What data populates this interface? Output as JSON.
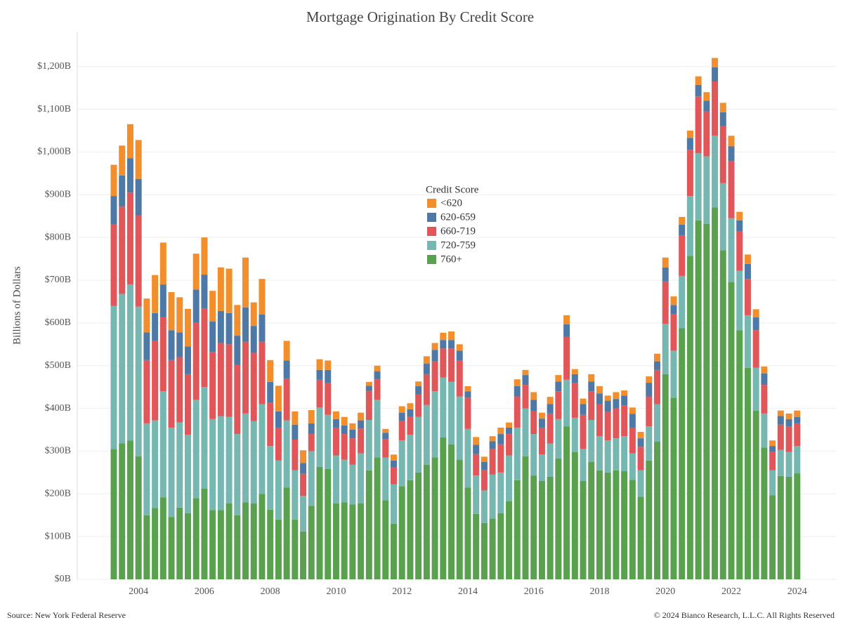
{
  "chart_data": {
    "type": "stacked_bar",
    "title": "Mortgage Origination By Credit Score",
    "y_label": "Billions of Dollars",
    "source": "Source: New York Federal Reserve",
    "copyright": "© 2024 Bianco Research, L.L.C. All Rights Reserved",
    "legend_title": "Credit Score",
    "categories": [
      null,
      null,
      null,
      "2004",
      null,
      null,
      null,
      null,
      null,
      null,
      null,
      "2006",
      null,
      null,
      null,
      null,
      null,
      null,
      null,
      "2008",
      null,
      null,
      null,
      null,
      null,
      null,
      null,
      "2010",
      null,
      null,
      null,
      null,
      null,
      null,
      null,
      "2012",
      null,
      null,
      null,
      null,
      null,
      null,
      null,
      "2014",
      null,
      null,
      null,
      null,
      null,
      null,
      null,
      "2016",
      null,
      null,
      null,
      null,
      null,
      null,
      null,
      "2018",
      null,
      null,
      null,
      null,
      null,
      null,
      null,
      "2020",
      null,
      null,
      null,
      null,
      null,
      null,
      null,
      "2022",
      null,
      null,
      null,
      null,
      null,
      null,
      null,
      "2024"
    ],
    "series": [
      {
        "name": "760+",
        "color": "#59a14f",
        "values": [
          305,
          318,
          325,
          288,
          150,
          167,
          192,
          146,
          168,
          155,
          190,
          212,
          162,
          162,
          178,
          150,
          180,
          178,
          200,
          163,
          140,
          215,
          140,
          112,
          172,
          263,
          258,
          178,
          180,
          175,
          178,
          255,
          285,
          185,
          130,
          218,
          232,
          250,
          268,
          285,
          332,
          316,
          280,
          215,
          153,
          132,
          142,
          155,
          183,
          232,
          288,
          243,
          230,
          240,
          283,
          358,
          298,
          230,
          275,
          255,
          250,
          255,
          253,
          233,
          193,
          278,
          322,
          480,
          425,
          588,
          757,
          840,
          832,
          870,
          770,
          695,
          583,
          495,
          395,
          308,
          197,
          242,
          240,
          248
        ]
      },
      {
        "name": "720-759",
        "color": "#76b7b2",
        "values": [
          335,
          350,
          365,
          350,
          215,
          205,
          248,
          209,
          199,
          183,
          230,
          238,
          213,
          220,
          202,
          190,
          208,
          192,
          210,
          149,
          138,
          157,
          115,
          83,
          128,
          139,
          127,
          112,
          100,
          93,
          117,
          118,
          135,
          100,
          92,
          107,
          106,
          130,
          140,
          155,
          140,
          146,
          148,
          137,
          90,
          76,
          103,
          95,
          107,
          123,
          112,
          97,
          62,
          78,
          92,
          109,
          80,
          75,
          98,
          80,
          75,
          75,
          82,
          62,
          62,
          80,
          88,
          118,
          110,
          122,
          140,
          157,
          158,
          168,
          157,
          150,
          139,
          123,
          100,
          80,
          58,
          61,
          58,
          64
        ]
      },
      {
        "name": "660-719",
        "color": "#e15759",
        "values": [
          190,
          204,
          215,
          214,
          148,
          186,
          173,
          158,
          153,
          142,
          180,
          183,
          157,
          171,
          170,
          162,
          168,
          160,
          146,
          101,
          77,
          98,
          72,
          52,
          40,
          65,
          75,
          65,
          60,
          62,
          58,
          68,
          48,
          43,
          40,
          45,
          42,
          53,
          72,
          70,
          68,
          78,
          84,
          73,
          50,
          47,
          60,
          66,
          50,
          73,
          55,
          53,
          63,
          70,
          65,
          100,
          82,
          80,
          67,
          75,
          67,
          70,
          72,
          60,
          55,
          70,
          80,
          99,
          85,
          95,
          108,
          133,
          105,
          127,
          133,
          133,
          93,
          85,
          88,
          67,
          43,
          59,
          60,
          53
        ]
      },
      {
        "name": "620-659",
        "color": "#4e79a7",
        "values": [
          67,
          73,
          80,
          85,
          65,
          65,
          77,
          70,
          58,
          65,
          78,
          80,
          71,
          75,
          73,
          68,
          80,
          63,
          64,
          49,
          38,
          42,
          35,
          25,
          25,
          23,
          30,
          20,
          20,
          20,
          19,
          12,
          19,
          15,
          16,
          20,
          18,
          19,
          25,
          27,
          20,
          20,
          23,
          15,
          22,
          20,
          18,
          24,
          15,
          24,
          23,
          27,
          21,
          22,
          23,
          30,
          20,
          25,
          23,
          25,
          26,
          22,
          23,
          32,
          20,
          32,
          20,
          33,
          22,
          25,
          28,
          27,
          25,
          33,
          33,
          35,
          25,
          35,
          30,
          27,
          14,
          20,
          17,
          15
        ]
      },
      {
        "name": "<620",
        "color": "#f28e2b",
        "values": [
          73,
          70,
          80,
          91,
          79,
          89,
          98,
          89,
          82,
          88,
          84,
          87,
          72,
          102,
          104,
          72,
          117,
          55,
          83,
          51,
          60,
          46,
          31,
          30,
          31,
          25,
          22,
          18,
          20,
          15,
          18,
          9,
          13,
          9,
          14,
          15,
          14,
          11,
          17,
          16,
          17,
          20,
          15,
          12,
          18,
          12,
          12,
          15,
          12,
          16,
          12,
          18,
          14,
          17,
          15,
          21,
          12,
          13,
          17,
          17,
          12,
          16,
          12,
          15,
          15,
          15,
          18,
          23,
          20,
          18,
          17,
          20,
          20,
          22,
          22,
          25,
          20,
          22,
          19,
          16,
          13,
          13,
          13,
          15
        ]
      }
    ],
    "ylim": [
      0,
      1280
    ],
    "yticks": [
      {
        "value": 0,
        "label": "$0B"
      },
      {
        "value": 100,
        "label": "$100B"
      },
      {
        "value": 200,
        "label": "$200B"
      },
      {
        "value": 300,
        "label": "$300B"
      },
      {
        "value": 400,
        "label": "$400B"
      },
      {
        "value": 500,
        "label": "$500B"
      },
      {
        "value": 600,
        "label": "$600B"
      },
      {
        "value": 700,
        "label": "$700B"
      },
      {
        "value": 800,
        "label": "$800B"
      },
      {
        "value": 900,
        "label": "$900B"
      },
      {
        "value": 1000,
        "label": "$1,000B"
      },
      {
        "value": 1100,
        "label": "$1,100B"
      },
      {
        "value": 1200,
        "label": "$1,200B"
      }
    ],
    "grid": true
  }
}
